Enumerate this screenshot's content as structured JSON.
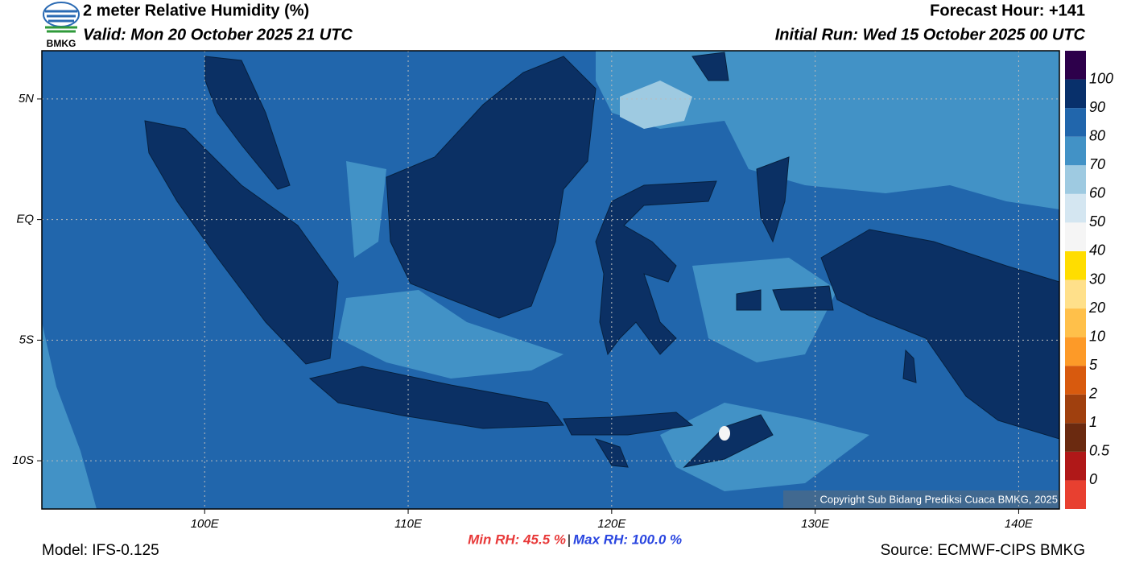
{
  "header": {
    "title": "2 meter Relative Humidity (%)",
    "valid": "Valid: Mon 20 October 2025 21 UTC",
    "forecast_hour": "Forecast Hour: +141",
    "initial_run": "Initial Run: Wed 15 October 2025 00 UTC",
    "logo_text": "BMKG"
  },
  "map": {
    "xlim": [
      92,
      142
    ],
    "ylim": [
      -12,
      7
    ],
    "xticks": [
      {
        "value": 100,
        "label": "100E"
      },
      {
        "value": 110,
        "label": "110E"
      },
      {
        "value": 120,
        "label": "120E"
      },
      {
        "value": 130,
        "label": "130E"
      },
      {
        "value": 140,
        "label": "140E"
      }
    ],
    "yticks": [
      {
        "value": 5,
        "label": "5N"
      },
      {
        "value": 0,
        "label": "EQ"
      },
      {
        "value": -5,
        "label": "5S"
      },
      {
        "value": -10,
        "label": "10S"
      }
    ],
    "grid": true,
    "copyright": "Copyright Sub Bidang Prediksi Cuaca BMKG, 2025"
  },
  "colorbar": {
    "labels": [
      0,
      0.5,
      1,
      2,
      5,
      10,
      20,
      30,
      40,
      50,
      60,
      70,
      80,
      90,
      100
    ],
    "colors": [
      "#e84030",
      "#b01818",
      "#6b2a10",
      "#a0400e",
      "#d85a0e",
      "#fd9a28",
      "#ffc04a",
      "#ffe08a",
      "#ffdd00",
      "#f5f5f5",
      "#d4e6f1",
      "#9ecae1",
      "#4292c6",
      "#2166ac",
      "#08306b",
      "#2d004b"
    ]
  },
  "footer": {
    "min_rh": "Min RH:  45.5 %",
    "separator": "|",
    "max_rh": "Max RH: 100.0 %",
    "model": "Model: IFS-0.125",
    "source": "Source: ECMWF-CIPS BMKG"
  }
}
